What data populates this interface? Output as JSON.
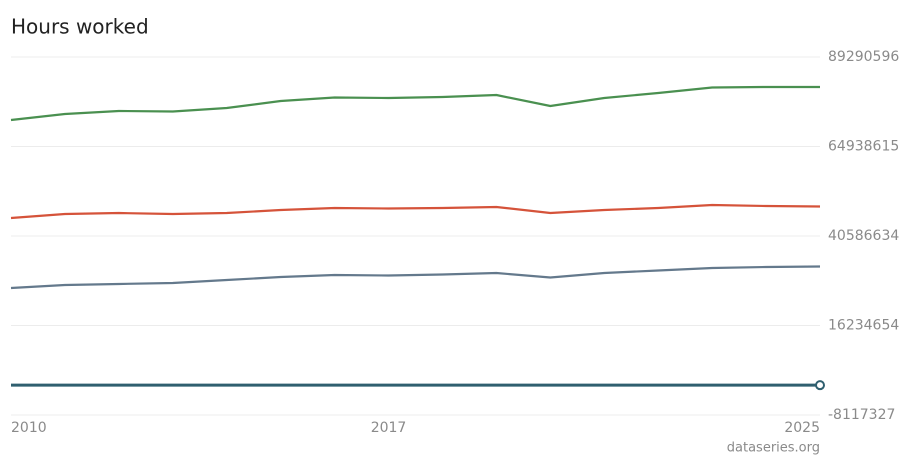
{
  "chart_data": {
    "type": "line",
    "title": "Hours worked",
    "source": "dataseries.org",
    "x": [
      2010,
      2011,
      2012,
      2013,
      2014,
      2015,
      2016,
      2017,
      2018,
      2019,
      2020,
      2021,
      2022,
      2023,
      2024,
      2025
    ],
    "xlim": [
      2010,
      2025
    ],
    "xticks": [
      2010,
      2017,
      2025
    ],
    "ylim": [
      -8117327,
      89290596
    ],
    "yticks": [
      -8117327,
      16234654,
      40586634,
      64938615,
      89290596
    ],
    "grid": true,
    "series": [
      {
        "color": "#4a9050",
        "values": [
          72150000,
          73780000,
          74600000,
          74460000,
          75410000,
          77320000,
          78270000,
          78130000,
          78410000,
          78950000,
          75960000,
          78130000,
          79500000,
          80990000,
          81130000,
          81130000
        ]
      },
      {
        "color": "#d5533a",
        "values": [
          45480000,
          46570000,
          46840000,
          46570000,
          46840000,
          47660000,
          48210000,
          48070000,
          48210000,
          48480000,
          46840000,
          47660000,
          48210000,
          49020000,
          48750000,
          48610000
        ]
      },
      {
        "color": "#64798c",
        "values": [
          26440000,
          27250000,
          27530000,
          27800000,
          28610000,
          29430000,
          29980000,
          29840000,
          30110000,
          30520000,
          29290000,
          30520000,
          31200000,
          31880000,
          32150000,
          32290000
        ]
      },
      {
        "color": "#2f5f6f",
        "values": [
          0,
          0,
          0,
          0,
          0,
          0,
          0,
          0,
          0,
          0,
          0,
          0,
          0,
          0,
          0,
          0
        ]
      }
    ]
  }
}
